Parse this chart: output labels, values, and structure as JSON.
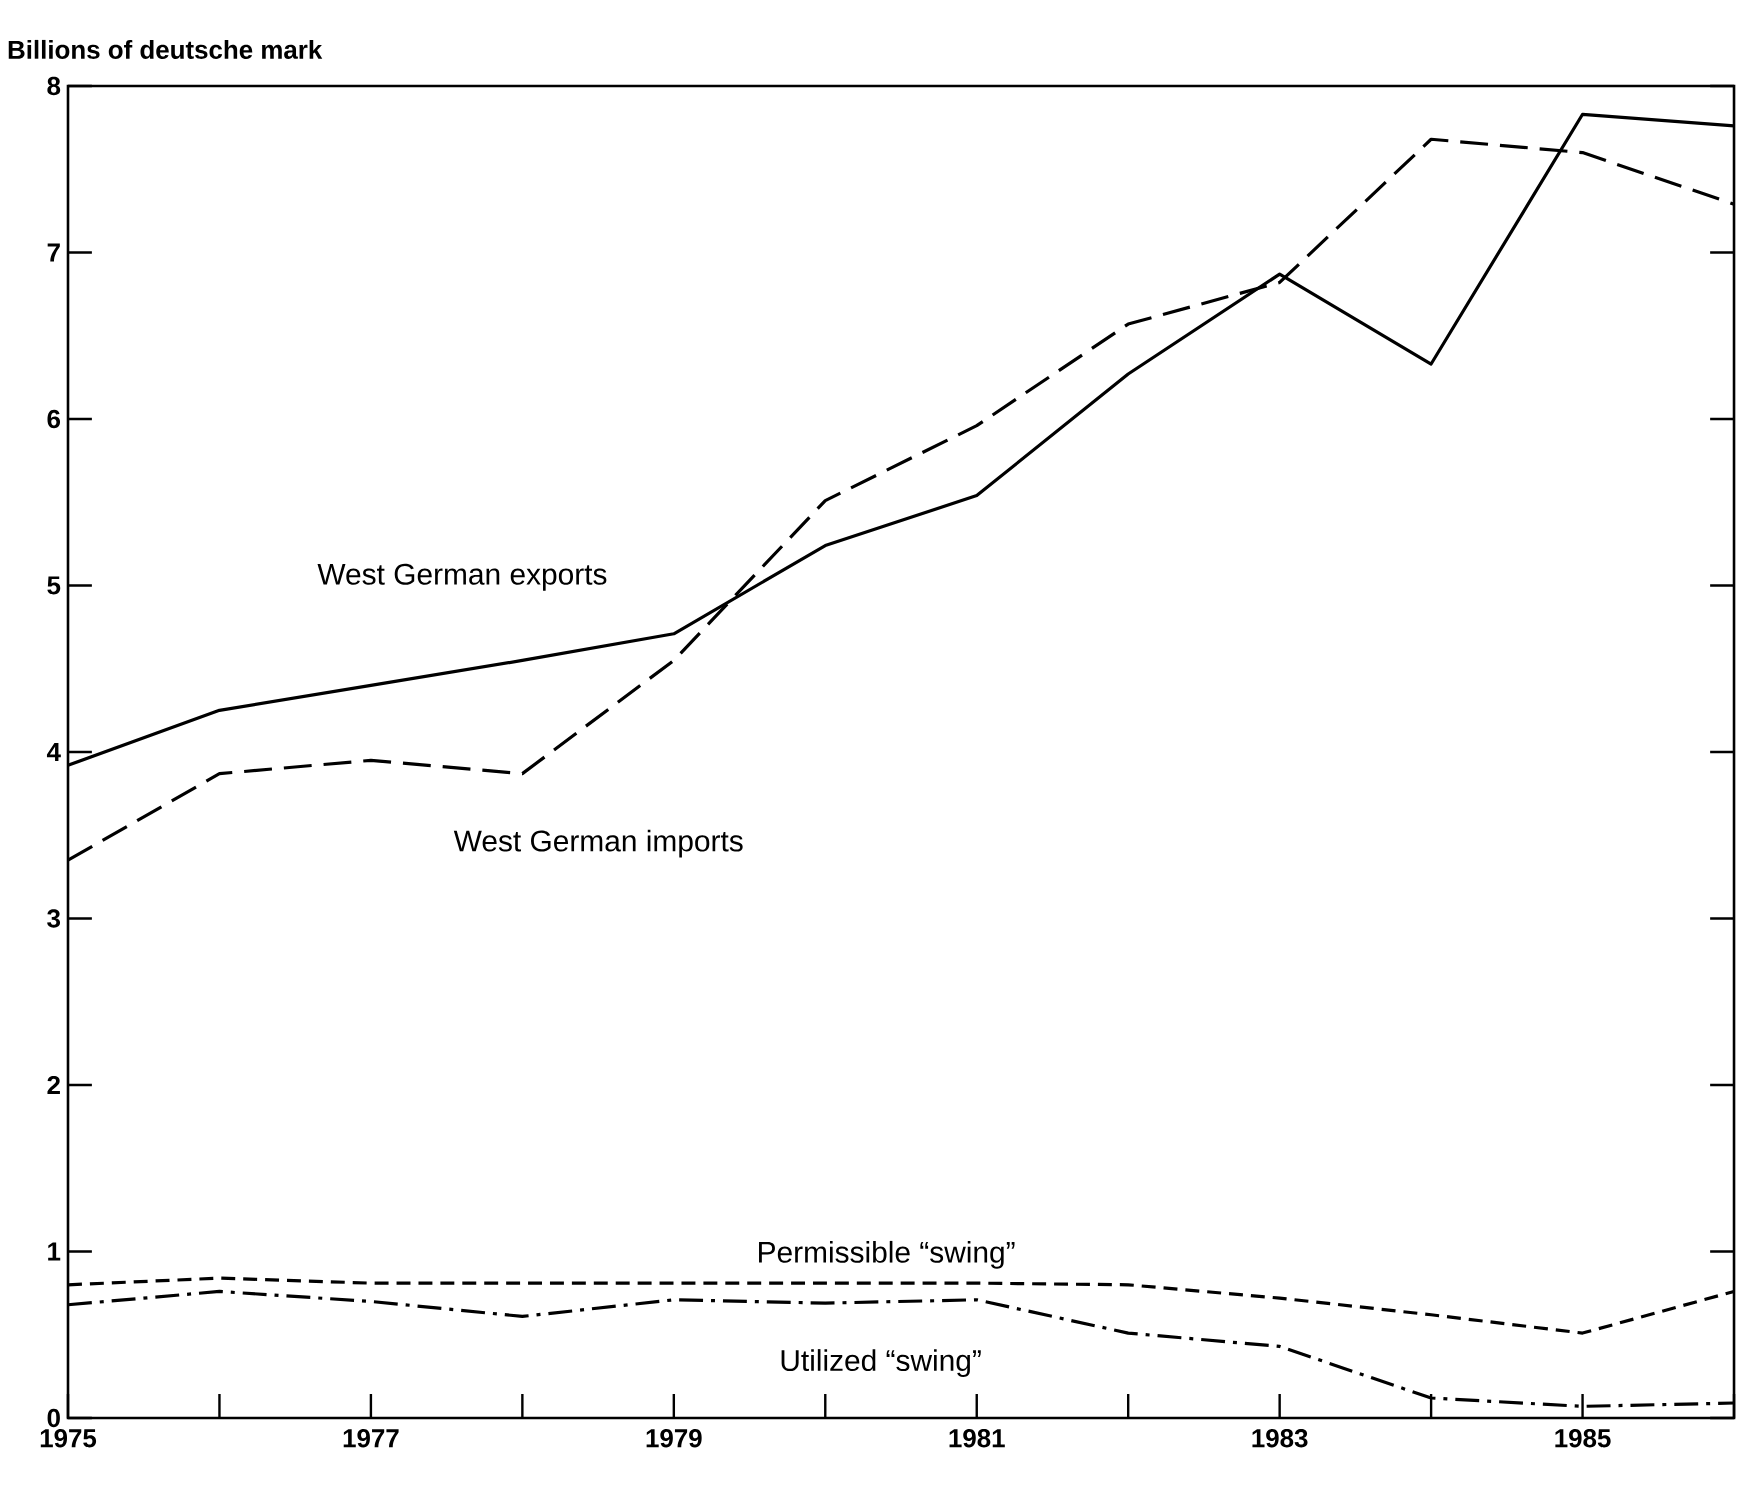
{
  "chart_data": {
    "type": "line",
    "ylabel": "Billions of deutsche mark",
    "x": [
      1975,
      1976,
      1977,
      1978,
      1979,
      1980,
      1981,
      1982,
      1983,
      1984,
      1985,
      1986
    ],
    "series": [
      {
        "name": "West German exports",
        "color": "#000000",
        "line_style": "solid",
        "values": [
          3.92,
          4.25,
          4.4,
          4.55,
          4.71,
          5.24,
          5.54,
          6.27,
          6.87,
          6.33,
          7.83,
          7.76
        ]
      },
      {
        "name": "West German imports",
        "color": "#000000",
        "line_style": "dashed",
        "values": [
          3.35,
          3.87,
          3.95,
          3.87,
          4.55,
          5.51,
          5.96,
          6.57,
          6.82,
          7.68,
          7.6,
          7.29
        ]
      },
      {
        "name": "Permissible “swing”",
        "color": "#000000",
        "line_style": "dashed",
        "values": [
          0.8,
          0.84,
          0.81,
          0.81,
          0.81,
          0.81,
          0.81,
          0.8,
          0.72,
          0.62,
          0.51,
          0.76
        ]
      },
      {
        "name": "Utilized “swing”",
        "color": "#000000",
        "line_style": "dashdot",
        "values": [
          0.68,
          0.76,
          0.7,
          0.61,
          0.71,
          0.69,
          0.71,
          0.51,
          0.43,
          0.12,
          0.07,
          0.09
        ]
      }
    ],
    "xlim": [
      1975,
      1986
    ],
    "xticks": [
      1975,
      {
        "value": 1976,
        "label": null
      },
      1977,
      {
        "value": 1978,
        "label": null
      },
      1979,
      {
        "value": 1980,
        "label": null
      },
      1981,
      {
        "value": 1982,
        "label": null
      },
      1983,
      {
        "value": 1984,
        "label": null
      },
      1985,
      {
        "value": 1986,
        "label": null
      }
    ],
    "ylim": [
      0,
      8
    ],
    "yticks": [
      0,
      1,
      2,
      3,
      4,
      5,
      6,
      7,
      8
    ],
    "grid": false,
    "legend": false,
    "marker": "none"
  }
}
